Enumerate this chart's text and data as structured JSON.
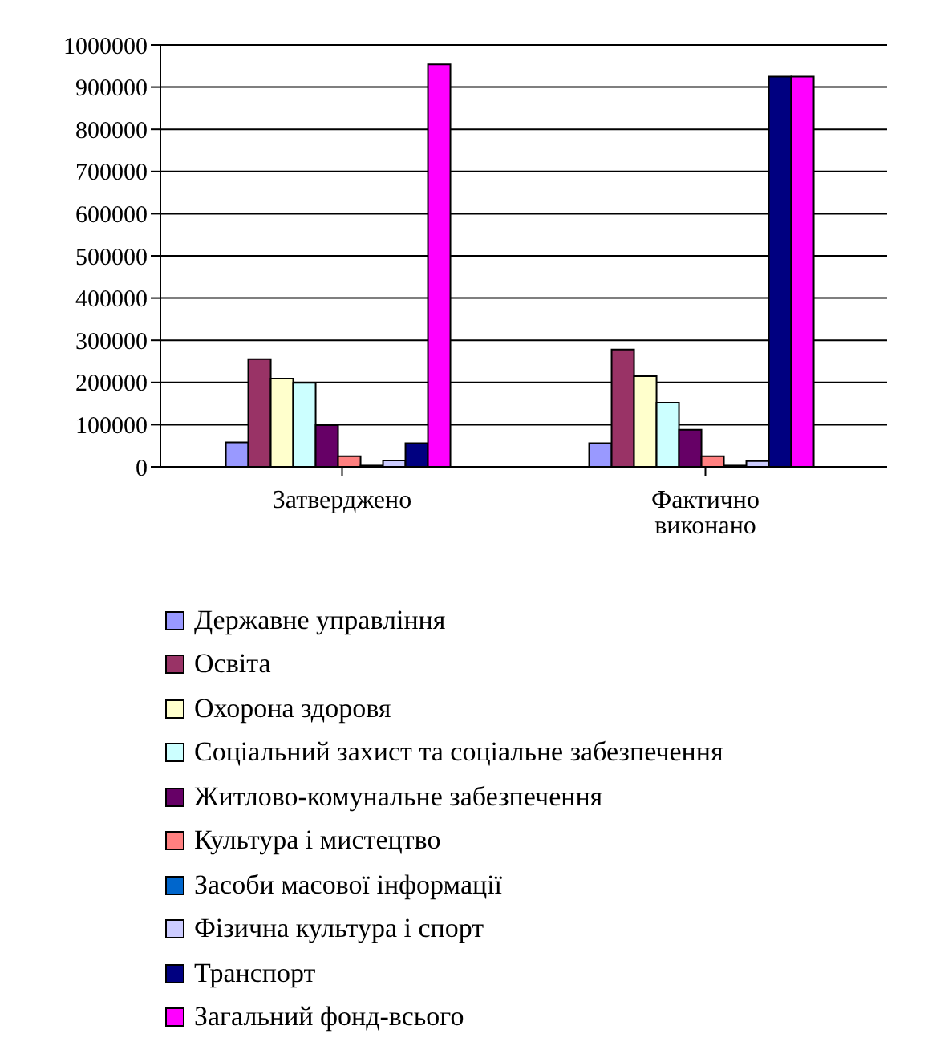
{
  "chart_data": {
    "type": "bar",
    "categories": [
      "Затверджено",
      "Фактично виконано"
    ],
    "series": [
      {
        "name": "Державне управління",
        "color": "#9999ff",
        "values": [
          58000,
          56000
        ]
      },
      {
        "name": "Освіта",
        "color": "#993366",
        "values": [
          255000,
          278000
        ]
      },
      {
        "name": "Охорона здоровя",
        "color": "#ffffcc",
        "values": [
          209000,
          215000
        ]
      },
      {
        "name": "Соціальний захист та соціальне забезпечення",
        "color": "#ccffff",
        "values": [
          199000,
          152000
        ]
      },
      {
        "name": "Житлово-комунальне забезпечення",
        "color": "#660066",
        "values": [
          99000,
          88000
        ]
      },
      {
        "name": "Культура і мистецтво",
        "color": "#ff8080",
        "values": [
          25000,
          25000
        ]
      },
      {
        "name": "Засоби масової інформації",
        "color": "#0066cc",
        "values": [
          3000,
          3000
        ]
      },
      {
        "name": "Фізична культура і спорт",
        "color": "#ccccff",
        "values": [
          15000,
          14000
        ]
      },
      {
        "name": "Транспорт",
        "color": "#000080",
        "values": [
          56000,
          925000
        ]
      },
      {
        "name": "Загальний фонд-всього",
        "color": "#ff00ff",
        "values": [
          954000,
          925000
        ]
      }
    ],
    "ylim": [
      0,
      1000000
    ],
    "yticks": [
      0,
      100000,
      200000,
      300000,
      400000,
      500000,
      600000,
      700000,
      800000,
      900000,
      1000000
    ],
    "grid": "y",
    "legend": "bottom"
  }
}
